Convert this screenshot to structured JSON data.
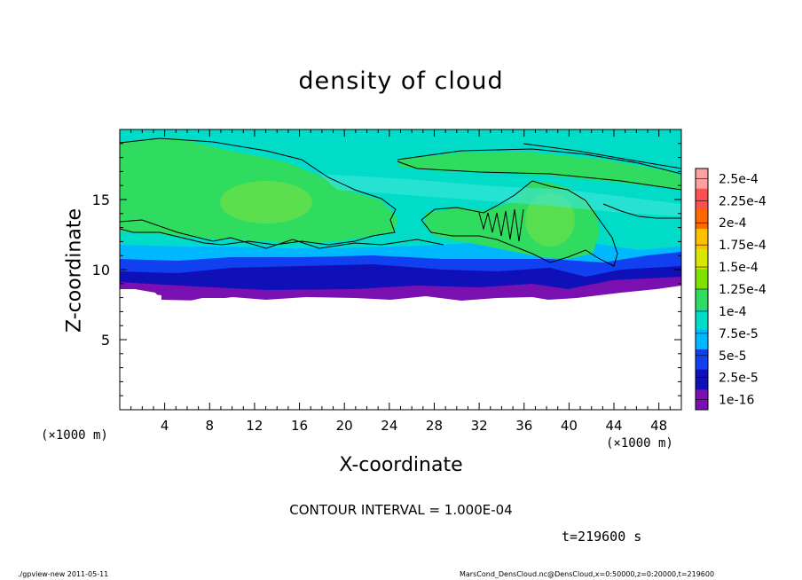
{
  "chart_data": {
    "type": "heatmap",
    "title": "density of cloud",
    "xlabel": "X-coordinate",
    "ylabel": "Z-coordinate",
    "x_unit": "(×1000 m)",
    "xlim": [
      0,
      50
    ],
    "ylim": [
      0,
      20
    ],
    "x_ticks": [
      "4",
      "8",
      "12",
      "16",
      "20",
      "24",
      "28",
      "32",
      "36",
      "40",
      "44",
      "48"
    ],
    "y_ticks": [
      "5",
      "10",
      "15"
    ],
    "colorbar": {
      "labels": [
        "2.5e-4",
        "2.25e-4",
        "2e-4",
        "1.75e-4",
        "1.5e-4",
        "1.25e-4",
        "1e-4",
        "7.5e-5",
        "5e-5",
        "2.5e-5",
        "1e-16"
      ],
      "colors": [
        "#ffa0a0",
        "#ff5050",
        "#ff6a00",
        "#ffc000",
        "#d8e600",
        "#80e000",
        "#30dc60",
        "#00dcc8",
        "#00b8ff",
        "#1040f0",
        "#1010b8",
        "#7a10b0"
      ]
    },
    "layers": [
      {
        "z_bottom": 8.0,
        "z_top": 9.2,
        "level": "1e-16"
      },
      {
        "z_bottom": 9.2,
        "z_top": 10.0,
        "level": "2.5e-5"
      },
      {
        "z_bottom": 10.0,
        "z_top": 11.0,
        "level": "5e-5"
      },
      {
        "z_bottom": 11.0,
        "z_top": 12.3,
        "level": "7.5e-5"
      },
      {
        "z_bottom": 12.3,
        "z_top": 20.0,
        "level": "1e-4"
      }
    ],
    "contour_interval": "CONTOUR INTERVAL = 1.000E-04",
    "time_label": "t=219600 s"
  },
  "footer": {
    "left": "./gpview-new  2011-05-11",
    "right": "MarsCond_DensCloud.nc@DensCloud,x=0:50000,z=0:20000,t=219600"
  },
  "colors": {
    "background": "#ffffff",
    "green": "#30dc60",
    "lightgreen": "#6ae04a",
    "cyan": "#00dcc8",
    "skyblue": "#00b8ff",
    "blue": "#1040f0",
    "navy": "#1010b8",
    "purple": "#7a10b0"
  }
}
